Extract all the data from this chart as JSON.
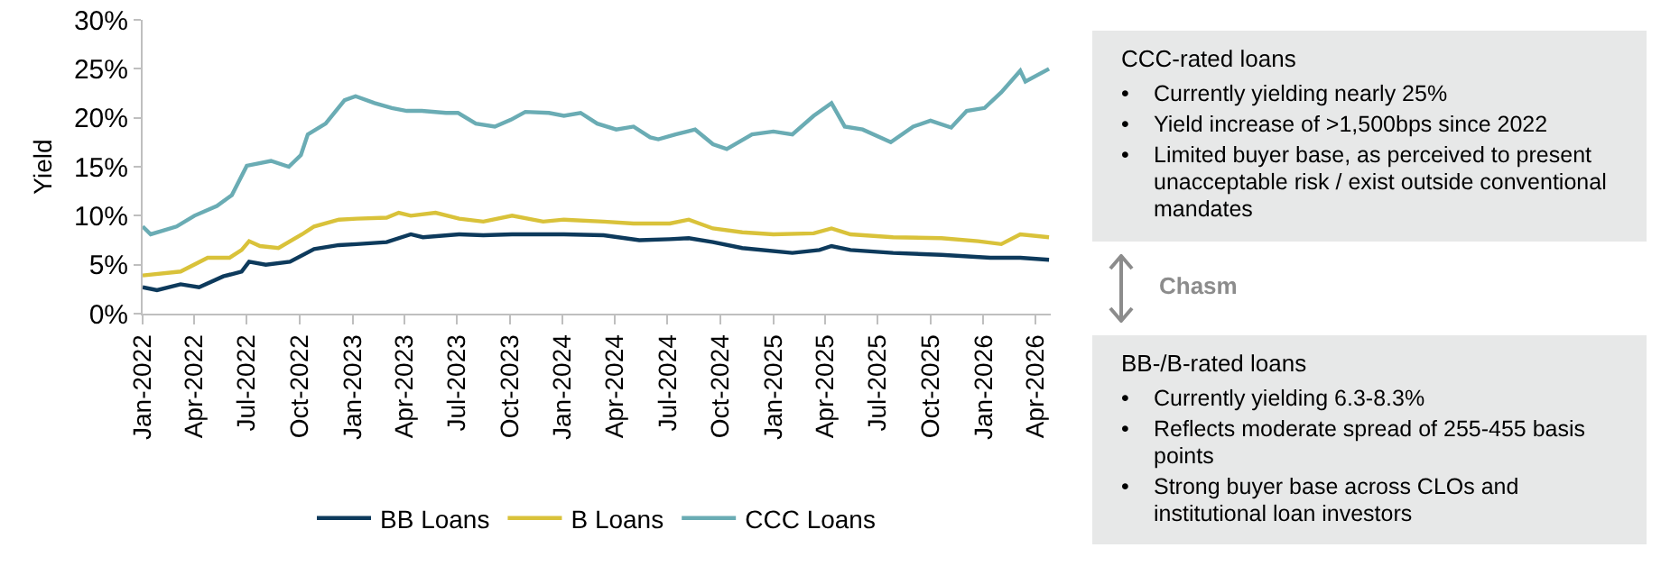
{
  "chart_data": {
    "type": "line",
    "ylabel": "Yield",
    "ylim": [
      0,
      30
    ],
    "yticks": [
      {
        "value": 0,
        "label": "0%"
      },
      {
        "value": 5,
        "label": "5%"
      },
      {
        "value": 10,
        "label": "10%"
      },
      {
        "value": 15,
        "label": "15%"
      },
      {
        "value": 20,
        "label": "20%"
      },
      {
        "value": 25,
        "label": "25%"
      },
      {
        "value": 30,
        "label": "30%"
      }
    ],
    "xlim": [
      "2022-01-01",
      "2026-04-28"
    ],
    "xticks": [
      {
        "value": "2022-01-01",
        "label": "Jan-2022"
      },
      {
        "value": "2022-04-01",
        "label": "Apr-2022"
      },
      {
        "value": "2022-07-01",
        "label": "Jul-2022"
      },
      {
        "value": "2022-10-01",
        "label": "Oct-2022"
      },
      {
        "value": "2023-01-01",
        "label": "Jan-2023"
      },
      {
        "value": "2023-04-01",
        "label": "Apr-2023"
      },
      {
        "value": "2023-07-01",
        "label": "Jul-2023"
      },
      {
        "value": "2023-10-01",
        "label": "Oct-2023"
      },
      {
        "value": "2024-01-01",
        "label": "Jan-2024"
      },
      {
        "value": "2024-04-01",
        "label": "Apr-2024"
      },
      {
        "value": "2024-07-01",
        "label": "Jul-2024"
      },
      {
        "value": "2024-10-01",
        "label": "Oct-2024"
      },
      {
        "value": "2025-01-01",
        "label": "Jan-2025"
      },
      {
        "value": "2025-04-01",
        "label": "Apr-2025"
      },
      {
        "value": "2025-07-01",
        "label": "Jul-2025"
      },
      {
        "value": "2025-10-01",
        "label": "Oct-2025"
      },
      {
        "value": "2026-01-01",
        "label": "Jan-2026"
      },
      {
        "value": "2026-04-01",
        "label": "Apr-2026"
      }
    ],
    "grid": false,
    "legend": "bottom",
    "marker": "none",
    "line_style": "solid",
    "series": [
      {
        "name": "BB Loans",
        "color": "#0d3a5c",
        "x": [
          "2022-01-01",
          "2022-01-26",
          "2022-03-08",
          "2022-04-09",
          "2022-05-21",
          "2022-06-22",
          "2022-07-05",
          "2022-08-03",
          "2022-09-14",
          "2022-10-26",
          "2022-12-08",
          "2023-01-08",
          "2023-03-01",
          "2023-04-12",
          "2023-05-03",
          "2023-07-05",
          "2023-08-16",
          "2023-10-05",
          "2023-11-28",
          "2024-01-03",
          "2024-03-12",
          "2024-05-13",
          "2024-07-05",
          "2024-08-07",
          "2024-09-18",
          "2024-11-08",
          "2025-02-03",
          "2025-03-22",
          "2025-04-12",
          "2025-05-15",
          "2025-07-28",
          "2025-10-20",
          "2026-01-13",
          "2026-03-06",
          "2026-04-25"
        ],
        "values": [
          2.7,
          2.4,
          3.0,
          2.7,
          3.8,
          4.3,
          5.3,
          5.0,
          5.3,
          6.6,
          7.0,
          7.1,
          7.3,
          8.1,
          7.8,
          8.1,
          8.0,
          8.1,
          8.1,
          8.1,
          8.0,
          7.5,
          7.6,
          7.7,
          7.3,
          6.7,
          6.2,
          6.5,
          6.9,
          6.5,
          6.2,
          6.0,
          5.7,
          5.7,
          5.5
        ]
      },
      {
        "name": "B Loans",
        "color": "#d9c23a",
        "x": [
          "2022-01-01",
          "2022-03-08",
          "2022-04-24",
          "2022-06-01",
          "2022-06-22",
          "2022-07-05",
          "2022-07-24",
          "2022-08-25",
          "2022-10-05",
          "2022-10-26",
          "2022-12-08",
          "2023-01-08",
          "2023-03-01",
          "2023-03-22",
          "2023-04-12",
          "2023-05-25",
          "2023-07-05",
          "2023-08-16",
          "2023-10-05",
          "2023-11-28",
          "2024-01-03",
          "2024-03-12",
          "2024-05-03",
          "2024-07-05",
          "2024-08-07",
          "2024-09-18",
          "2024-11-08",
          "2025-01-01",
          "2025-03-12",
          "2025-04-12",
          "2025-05-15",
          "2025-07-28",
          "2025-10-20",
          "2025-12-23",
          "2026-02-01",
          "2026-03-06",
          "2026-04-25"
        ],
        "values": [
          3.9,
          4.3,
          5.7,
          5.7,
          6.5,
          7.4,
          6.9,
          6.7,
          8.1,
          8.9,
          9.6,
          9.7,
          9.8,
          10.3,
          10.0,
          10.3,
          9.7,
          9.4,
          10.0,
          9.4,
          9.6,
          9.4,
          9.2,
          9.2,
          9.6,
          8.7,
          8.3,
          8.1,
          8.2,
          8.7,
          8.1,
          7.8,
          7.7,
          7.4,
          7.1,
          8.1,
          7.8
        ]
      },
      {
        "name": "CCC Loans",
        "color": "#6aacb4",
        "x": [
          "2022-01-01",
          "2022-01-15",
          "2022-03-01",
          "2022-04-01",
          "2022-05-10",
          "2022-06-05",
          "2022-07-01",
          "2022-08-12",
          "2022-09-12",
          "2022-10-03",
          "2022-10-15",
          "2022-11-15",
          "2022-12-18",
          "2023-01-06",
          "2023-02-08",
          "2023-03-10",
          "2023-04-05",
          "2023-05-01",
          "2023-06-12",
          "2023-07-03",
          "2023-08-03",
          "2023-09-05",
          "2023-10-03",
          "2023-10-28",
          "2023-12-08",
          "2024-01-03",
          "2024-02-01",
          "2024-03-01",
          "2024-04-03",
          "2024-05-03",
          "2024-06-01",
          "2024-06-15",
          "2024-07-15",
          "2024-08-18",
          "2024-09-18",
          "2024-10-12",
          "2024-11-25",
          "2025-01-01",
          "2025-02-03",
          "2025-03-12",
          "2025-04-12",
          "2025-05-05",
          "2025-06-05",
          "2025-07-24",
          "2025-09-01",
          "2025-10-01",
          "2025-11-06",
          "2025-12-03",
          "2026-01-03",
          "2026-02-01",
          "2026-03-06",
          "2026-03-15",
          "2026-04-25"
        ],
        "values": [
          8.9,
          8.1,
          8.9,
          10.0,
          11.0,
          12.1,
          15.1,
          15.6,
          15.0,
          16.2,
          18.3,
          19.4,
          21.8,
          22.2,
          21.5,
          21.0,
          20.7,
          20.7,
          20.5,
          20.5,
          19.4,
          19.1,
          19.8,
          20.6,
          20.5,
          20.2,
          20.5,
          19.4,
          18.8,
          19.1,
          18.0,
          17.8,
          18.3,
          18.8,
          17.3,
          16.8,
          18.3,
          18.6,
          18.3,
          20.2,
          21.5,
          19.1,
          18.8,
          17.5,
          19.1,
          19.7,
          19.0,
          20.7,
          21.0,
          22.6,
          24.8,
          23.7,
          25.0
        ]
      }
    ],
    "annotations": [
      "CCC-rated loans",
      "•\tCurrently yielding nearly 25%",
      "•\tYield increase of >1,500bps since 2022",
      "•\tLimited buyer base, as perceived to present unacceptable risk / exist outside conventional mandates",
      "Chasm",
      "BB-/B-rated loans",
      "•\tCurrently yielding 6.3-8.3%",
      "•\tReflects moderate spread of 255-455 basis points",
      "•\tStrong buyer base across CLOs and institutional loan investors"
    ]
  }
}
